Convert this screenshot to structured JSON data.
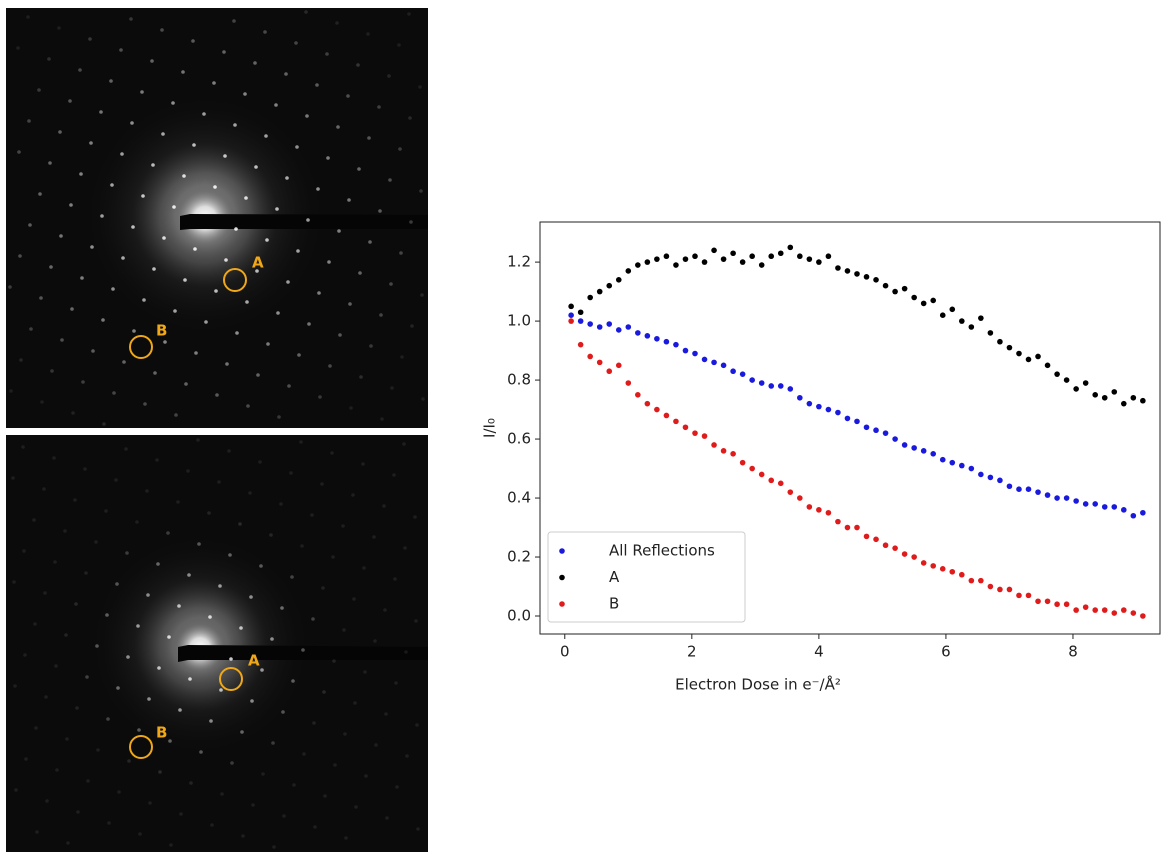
{
  "diffraction_images": [
    {
      "marker_labels": [
        "A",
        "B"
      ]
    },
    {
      "marker_labels": [
        "A",
        "B"
      ]
    }
  ],
  "chart_data": {
    "type": "scatter",
    "x_label": "Electron Dose in e⁻/Å²",
    "y_label": "I/I₀",
    "xlim": [
      -0.39,
      9.37
    ],
    "ylim": [
      -0.061,
      1.336
    ],
    "xticks": [
      0,
      2,
      4,
      6,
      8
    ],
    "yticks": [
      {
        "value": 0,
        "label": "0.0"
      },
      0.2,
      0.4,
      0.6,
      0.8,
      {
        "value": 1,
        "label": "1.0"
      },
      1.2
    ],
    "grid": false,
    "legend": "lower left",
    "x": [
      0.1,
      0.25,
      0.4,
      0.55,
      0.7,
      0.85,
      1,
      1.15,
      1.3,
      1.45,
      1.6,
      1.75,
      1.9,
      2.05,
      2.2,
      2.35,
      2.5,
      2.65,
      2.8,
      2.95,
      3.1,
      3.25,
      3.4,
      3.55,
      3.7,
      3.85,
      4,
      4.15,
      4.3,
      4.45,
      4.6,
      4.75,
      4.9,
      5.05,
      5.2,
      5.35,
      5.5,
      5.65,
      5.8,
      5.95,
      6.1,
      6.25,
      6.4,
      6.55,
      6.7,
      6.85,
      7,
      7.15,
      7.3,
      7.45,
      7.6,
      7.75,
      7.9,
      8.05,
      8.2,
      8.35,
      8.5,
      8.65,
      8.8,
      8.95,
      9.1
    ],
    "series": [
      {
        "name": "All Reflections",
        "color": "#1a1adf",
        "values": [
          1.02,
          1.0,
          0.99,
          0.98,
          0.99,
          0.97,
          0.98,
          0.96,
          0.95,
          0.94,
          0.93,
          0.92,
          0.9,
          0.89,
          0.87,
          0.86,
          0.85,
          0.83,
          0.82,
          0.8,
          0.79,
          0.78,
          0.78,
          0.77,
          0.74,
          0.72,
          0.71,
          0.7,
          0.69,
          0.67,
          0.66,
          0.64,
          0.63,
          0.62,
          0.6,
          0.58,
          0.57,
          0.56,
          0.55,
          0.53,
          0.52,
          0.51,
          0.5,
          0.48,
          0.47,
          0.46,
          0.44,
          0.43,
          0.43,
          0.42,
          0.41,
          0.4,
          0.4,
          0.39,
          0.38,
          0.38,
          0.37,
          0.37,
          0.36,
          0.34,
          0.35
        ]
      },
      {
        "name": "A",
        "color": "#000000",
        "values": [
          1.05,
          1.03,
          1.08,
          1.1,
          1.12,
          1.14,
          1.17,
          1.19,
          1.2,
          1.21,
          1.22,
          1.19,
          1.21,
          1.22,
          1.2,
          1.24,
          1.21,
          1.23,
          1.2,
          1.22,
          1.19,
          1.22,
          1.23,
          1.25,
          1.22,
          1.21,
          1.2,
          1.22,
          1.18,
          1.17,
          1.16,
          1.15,
          1.14,
          1.12,
          1.1,
          1.11,
          1.08,
          1.06,
          1.07,
          1.02,
          1.04,
          1.0,
          0.98,
          1.01,
          0.96,
          0.93,
          0.91,
          0.89,
          0.87,
          0.88,
          0.85,
          0.82,
          0.8,
          0.77,
          0.79,
          0.75,
          0.74,
          0.76,
          0.72,
          0.74,
          0.73
        ]
      },
      {
        "name": "B",
        "color": "#e01b1b",
        "values": [
          1.0,
          0.92,
          0.88,
          0.86,
          0.83,
          0.85,
          0.79,
          0.75,
          0.72,
          0.7,
          0.68,
          0.66,
          0.64,
          0.62,
          0.61,
          0.58,
          0.56,
          0.55,
          0.52,
          0.5,
          0.48,
          0.46,
          0.45,
          0.42,
          0.4,
          0.37,
          0.36,
          0.35,
          0.32,
          0.3,
          0.3,
          0.27,
          0.26,
          0.24,
          0.23,
          0.21,
          0.2,
          0.18,
          0.17,
          0.16,
          0.15,
          0.14,
          0.12,
          0.12,
          0.1,
          0.09,
          0.09,
          0.07,
          0.07,
          0.05,
          0.05,
          0.04,
          0.04,
          0.02,
          0.03,
          0.02,
          0.02,
          0.01,
          0.02,
          0.01,
          0.0
        ]
      }
    ]
  }
}
